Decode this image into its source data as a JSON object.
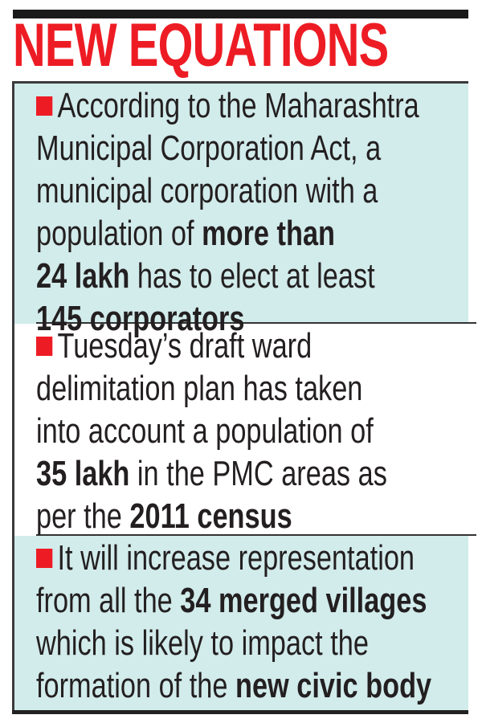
{
  "header": {
    "title": "NEW EQUATIONS"
  },
  "colors": {
    "title_red": "#ed1c24",
    "bullet_red": "#ed1c24",
    "tint_bg": "#d2ebeb",
    "text": "#231f20"
  },
  "sections": [
    {
      "tinted": true,
      "lines": [
        [
          {
            "t": "According to the Maharashtra",
            "b": false
          }
        ],
        [
          {
            "t": "Municipal Corporation Act, a",
            "b": false
          }
        ],
        [
          {
            "t": "municipal corporation with a",
            "b": false
          }
        ],
        [
          {
            "t": "population of ",
            "b": false
          },
          {
            "t": "more than",
            "b": true
          }
        ],
        [
          {
            "t": "24 lakh",
            "b": true
          },
          {
            "t": " has to elect at least",
            "b": false
          }
        ],
        [
          {
            "t": "145 corporators",
            "b": true
          }
        ]
      ]
    },
    {
      "tinted": false,
      "lines": [
        [
          {
            "t": "Tuesday’s draft ward",
            "b": false
          }
        ],
        [
          {
            "t": "delimitation plan has taken",
            "b": false
          }
        ],
        [
          {
            "t": "into account a population of",
            "b": false
          }
        ],
        [
          {
            "t": "35 lakh",
            "b": true
          },
          {
            "t": " in the PMC areas as",
            "b": false
          }
        ],
        [
          {
            "t": "per the ",
            "b": false
          },
          {
            "t": "2011 census",
            "b": true
          }
        ]
      ]
    },
    {
      "tinted": true,
      "lines": [
        [
          {
            "t": "It will increase representation",
            "b": false
          }
        ],
        [
          {
            "t": "from all the ",
            "b": false
          },
          {
            "t": "34 merged villages",
            "b": true
          }
        ],
        [
          {
            "t": "which is likely to impact the",
            "b": false
          }
        ],
        [
          {
            "t": "formation of the ",
            "b": false
          },
          {
            "t": "new civic body",
            "b": true
          }
        ]
      ]
    }
  ]
}
